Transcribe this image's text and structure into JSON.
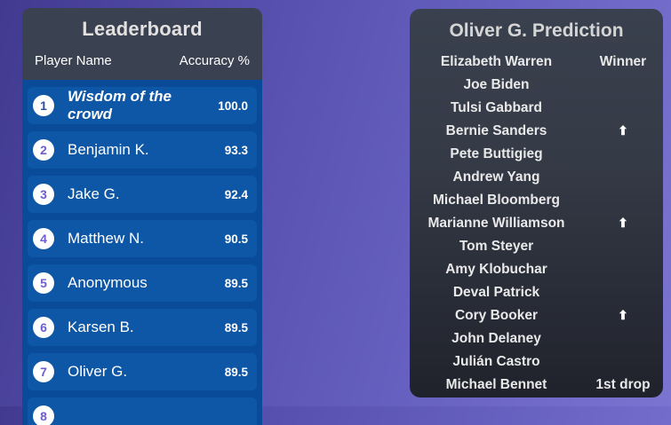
{
  "background": {
    "gradient_from": "#413a90",
    "gradient_to": "#7b74d0"
  },
  "leaderboard": {
    "title": "Leaderboard",
    "columns": {
      "player": "Player Name",
      "accuracy": "Accuracy %"
    },
    "colors": {
      "header_bg": "#3a4150",
      "list_bg": "#0a4b99",
      "row_bg": "#0e56a6",
      "rank1_number": "#2e4da0",
      "rank_number": "#6c5ecf"
    },
    "rows": [
      {
        "rank": "1",
        "name": "Wisdom of the crowd",
        "value": "100.0",
        "italic": true
      },
      {
        "rank": "2",
        "name": "Benjamin K.",
        "value": "93.3",
        "italic": false
      },
      {
        "rank": "3",
        "name": "Jake G.",
        "value": "92.4",
        "italic": false
      },
      {
        "rank": "4",
        "name": "Matthew N.",
        "value": "90.5",
        "italic": false
      },
      {
        "rank": "5",
        "name": "Anonymous",
        "value": "89.5",
        "italic": false
      },
      {
        "rank": "6",
        "name": "Karsen B.",
        "value": "89.5",
        "italic": false
      },
      {
        "rank": "7",
        "name": "Oliver G.",
        "value": "89.5",
        "italic": false
      },
      {
        "rank": "8",
        "name": "",
        "value": "",
        "italic": false
      }
    ]
  },
  "prediction": {
    "title": "Oliver G. Prediction",
    "icons": {
      "up_arrow": "⬆"
    },
    "colors": {
      "panel_top": "#3a414e",
      "panel_bottom": "#20222b"
    },
    "rows": [
      {
        "name": "Elizabeth Warren",
        "note": "Winner",
        "arrow": false
      },
      {
        "name": "Joe Biden",
        "note": "",
        "arrow": false
      },
      {
        "name": "Tulsi Gabbard",
        "note": "",
        "arrow": false
      },
      {
        "name": "Bernie Sanders",
        "note": "",
        "arrow": true
      },
      {
        "name": "Pete Buttigieg",
        "note": "",
        "arrow": false
      },
      {
        "name": "Andrew Yang",
        "note": "",
        "arrow": false
      },
      {
        "name": "Michael Bloomberg",
        "note": "",
        "arrow": false
      },
      {
        "name": "Marianne Williamson",
        "note": "",
        "arrow": true
      },
      {
        "name": "Tom Steyer",
        "note": "",
        "arrow": false
      },
      {
        "name": "Amy Klobuchar",
        "note": "",
        "arrow": false
      },
      {
        "name": "Deval Patrick",
        "note": "",
        "arrow": false
      },
      {
        "name": "Cory Booker",
        "note": "",
        "arrow": true
      },
      {
        "name": "John Delaney",
        "note": "",
        "arrow": false
      },
      {
        "name": "Julián Castro",
        "note": "",
        "arrow": false
      },
      {
        "name": "Michael Bennet",
        "note": "1st drop",
        "arrow": false
      }
    ]
  }
}
